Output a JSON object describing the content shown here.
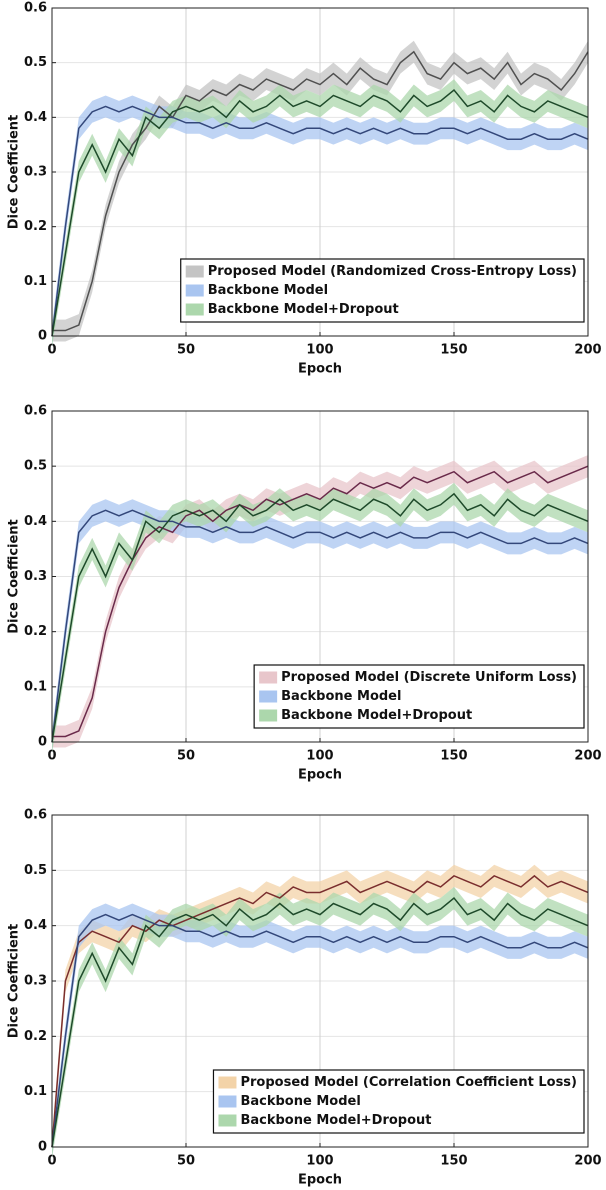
{
  "chart_data": [
    {
      "type": "line",
      "x_label": "Epoch",
      "y_label": "Dice Coefficient",
      "x": [
        0,
        5,
        10,
        15,
        20,
        25,
        30,
        35,
        40,
        45,
        50,
        55,
        60,
        65,
        70,
        75,
        80,
        85,
        90,
        95,
        100,
        105,
        110,
        115,
        120,
        125,
        130,
        135,
        140,
        145,
        150,
        155,
        160,
        165,
        170,
        175,
        180,
        185,
        190,
        195,
        200
      ],
      "xlim": [
        0,
        200
      ],
      "xticks": [
        0,
        50,
        100,
        150,
        200
      ],
      "ylim": [
        0,
        0.6
      ],
      "yticks": [
        0,
        0.1,
        0.2,
        0.3,
        0.4,
        0.5,
        0.6
      ],
      "grid": true,
      "legend": "lower right",
      "series": [
        {
          "name": "Proposed Model (Randomized Cross-Entropy Loss)",
          "color": "#505050",
          "band_color": "#c4c4c4",
          "band": 0.02,
          "values": [
            0.01,
            0.01,
            0.02,
            0.1,
            0.22,
            0.3,
            0.35,
            0.38,
            0.42,
            0.4,
            0.44,
            0.43,
            0.45,
            0.44,
            0.46,
            0.45,
            0.47,
            0.46,
            0.45,
            0.47,
            0.46,
            0.48,
            0.46,
            0.49,
            0.47,
            0.46,
            0.5,
            0.52,
            0.48,
            0.47,
            0.5,
            0.48,
            0.49,
            0.47,
            0.5,
            0.46,
            0.48,
            0.47,
            0.45,
            0.48,
            0.52
          ]
        },
        {
          "name": "Backbone Model",
          "color": "#33477a",
          "band_color": "#a9c5f0",
          "band": 0.02,
          "values": [
            0.0,
            0.2,
            0.38,
            0.41,
            0.42,
            0.41,
            0.42,
            0.41,
            0.4,
            0.4,
            0.39,
            0.39,
            0.38,
            0.39,
            0.38,
            0.38,
            0.39,
            0.38,
            0.37,
            0.38,
            0.38,
            0.37,
            0.38,
            0.37,
            0.38,
            0.37,
            0.38,
            0.37,
            0.37,
            0.38,
            0.38,
            0.37,
            0.38,
            0.37,
            0.36,
            0.36,
            0.37,
            0.36,
            0.36,
            0.37,
            0.36
          ]
        },
        {
          "name": "Backbone Model+Dropout",
          "color": "#1e4a2a",
          "band_color": "#acd7ac",
          "band": 0.02,
          "values": [
            0.0,
            0.15,
            0.3,
            0.35,
            0.3,
            0.36,
            0.33,
            0.4,
            0.38,
            0.41,
            0.42,
            0.41,
            0.42,
            0.4,
            0.43,
            0.41,
            0.42,
            0.44,
            0.42,
            0.43,
            0.42,
            0.44,
            0.43,
            0.42,
            0.44,
            0.43,
            0.41,
            0.44,
            0.42,
            0.43,
            0.45,
            0.42,
            0.43,
            0.41,
            0.44,
            0.42,
            0.41,
            0.43,
            0.42,
            0.41,
            0.4
          ]
        }
      ]
    },
    {
      "type": "line",
      "x_label": "Epoch",
      "y_label": "Dice Coefficient",
      "x": [
        0,
        5,
        10,
        15,
        20,
        25,
        30,
        35,
        40,
        45,
        50,
        55,
        60,
        65,
        70,
        75,
        80,
        85,
        90,
        95,
        100,
        105,
        110,
        115,
        120,
        125,
        130,
        135,
        140,
        145,
        150,
        155,
        160,
        165,
        170,
        175,
        180,
        185,
        190,
        195,
        200
      ],
      "xlim": [
        0,
        200
      ],
      "xticks": [
        0,
        50,
        100,
        150,
        200
      ],
      "ylim": [
        0,
        0.6
      ],
      "yticks": [
        0,
        0.1,
        0.2,
        0.3,
        0.4,
        0.5,
        0.6
      ],
      "grid": true,
      "legend": "lower right",
      "series": [
        {
          "name": "Proposed Model (Discrete Uniform Loss)",
          "color": "#6a2a4a",
          "band_color": "#e8c6cb",
          "band": 0.02,
          "values": [
            0.01,
            0.01,
            0.02,
            0.08,
            0.2,
            0.28,
            0.33,
            0.37,
            0.39,
            0.38,
            0.41,
            0.42,
            0.4,
            0.42,
            0.43,
            0.42,
            0.44,
            0.43,
            0.44,
            0.45,
            0.44,
            0.46,
            0.45,
            0.47,
            0.46,
            0.47,
            0.46,
            0.48,
            0.47,
            0.48,
            0.49,
            0.47,
            0.48,
            0.49,
            0.47,
            0.48,
            0.49,
            0.47,
            0.48,
            0.49,
            0.5
          ]
        },
        {
          "name": "Backbone Model",
          "color": "#33477a",
          "band_color": "#a9c5f0",
          "band": 0.02,
          "values": [
            0.0,
            0.2,
            0.38,
            0.41,
            0.42,
            0.41,
            0.42,
            0.41,
            0.4,
            0.4,
            0.39,
            0.39,
            0.38,
            0.39,
            0.38,
            0.38,
            0.39,
            0.38,
            0.37,
            0.38,
            0.38,
            0.37,
            0.38,
            0.37,
            0.38,
            0.37,
            0.38,
            0.37,
            0.37,
            0.38,
            0.38,
            0.37,
            0.38,
            0.37,
            0.36,
            0.36,
            0.37,
            0.36,
            0.36,
            0.37,
            0.36
          ]
        },
        {
          "name": "Backbone Model+Dropout",
          "color": "#1e4a2a",
          "band_color": "#acd7ac",
          "band": 0.02,
          "values": [
            0.0,
            0.15,
            0.3,
            0.35,
            0.3,
            0.36,
            0.33,
            0.4,
            0.38,
            0.41,
            0.42,
            0.41,
            0.42,
            0.4,
            0.43,
            0.41,
            0.42,
            0.44,
            0.42,
            0.43,
            0.42,
            0.44,
            0.43,
            0.42,
            0.44,
            0.43,
            0.41,
            0.44,
            0.42,
            0.43,
            0.45,
            0.42,
            0.43,
            0.41,
            0.44,
            0.42,
            0.41,
            0.43,
            0.42,
            0.41,
            0.4
          ]
        }
      ]
    },
    {
      "type": "line",
      "x_label": "Epoch",
      "y_label": "Dice Coefficient",
      "x": [
        0,
        5,
        10,
        15,
        20,
        25,
        30,
        35,
        40,
        45,
        50,
        55,
        60,
        65,
        70,
        75,
        80,
        85,
        90,
        95,
        100,
        105,
        110,
        115,
        120,
        125,
        130,
        135,
        140,
        145,
        150,
        155,
        160,
        165,
        170,
        175,
        180,
        185,
        190,
        195,
        200
      ],
      "xlim": [
        0,
        200
      ],
      "xticks": [
        0,
        50,
        100,
        150,
        200
      ],
      "ylim": [
        0,
        0.6
      ],
      "yticks": [
        0,
        0.1,
        0.2,
        0.3,
        0.4,
        0.5,
        0.6
      ],
      "grid": true,
      "legend": "lower right",
      "series": [
        {
          "name": "Proposed Model (Correlation Coefficient Loss)",
          "color": "#7a2e2e",
          "band_color": "#f3d3a8",
          "band": 0.02,
          "values": [
            0.0,
            0.3,
            0.37,
            0.39,
            0.38,
            0.37,
            0.4,
            0.39,
            0.41,
            0.4,
            0.41,
            0.42,
            0.43,
            0.44,
            0.45,
            0.44,
            0.46,
            0.45,
            0.47,
            0.46,
            0.46,
            0.47,
            0.48,
            0.46,
            0.47,
            0.48,
            0.47,
            0.46,
            0.48,
            0.47,
            0.49,
            0.48,
            0.47,
            0.49,
            0.48,
            0.47,
            0.49,
            0.47,
            0.48,
            0.47,
            0.46
          ]
        },
        {
          "name": "Backbone Model",
          "color": "#33477a",
          "band_color": "#a9c5f0",
          "band": 0.02,
          "values": [
            0.0,
            0.2,
            0.38,
            0.41,
            0.42,
            0.41,
            0.42,
            0.41,
            0.4,
            0.4,
            0.39,
            0.39,
            0.38,
            0.39,
            0.38,
            0.38,
            0.39,
            0.38,
            0.37,
            0.38,
            0.38,
            0.37,
            0.38,
            0.37,
            0.38,
            0.37,
            0.38,
            0.37,
            0.37,
            0.38,
            0.38,
            0.37,
            0.38,
            0.37,
            0.36,
            0.36,
            0.37,
            0.36,
            0.36,
            0.37,
            0.36
          ]
        },
        {
          "name": "Backbone Model+Dropout",
          "color": "#1e4a2a",
          "band_color": "#acd7ac",
          "band": 0.02,
          "values": [
            0.0,
            0.15,
            0.3,
            0.35,
            0.3,
            0.36,
            0.33,
            0.4,
            0.38,
            0.41,
            0.42,
            0.41,
            0.42,
            0.4,
            0.43,
            0.41,
            0.42,
            0.44,
            0.42,
            0.43,
            0.42,
            0.44,
            0.43,
            0.42,
            0.44,
            0.43,
            0.41,
            0.44,
            0.42,
            0.43,
            0.45,
            0.42,
            0.43,
            0.41,
            0.44,
            0.42,
            0.41,
            0.43,
            0.42,
            0.41,
            0.4
          ]
        }
      ]
    }
  ]
}
